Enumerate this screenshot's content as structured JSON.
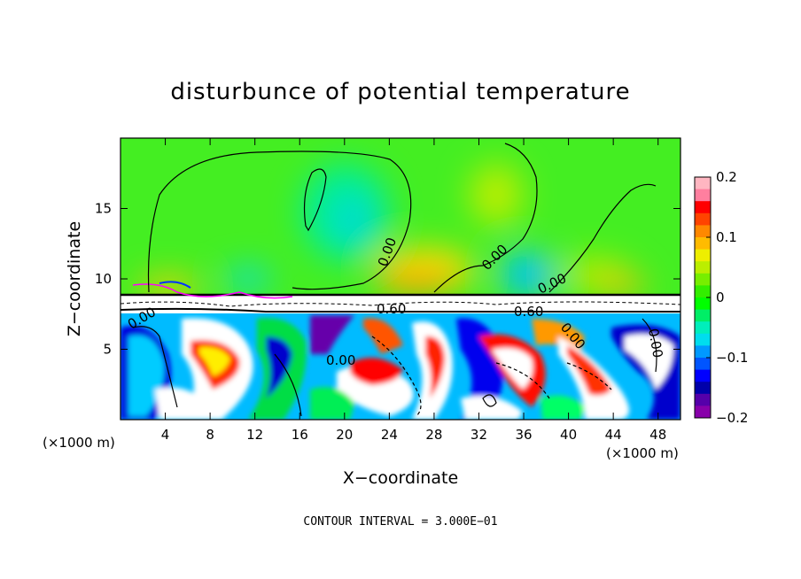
{
  "chart_data": {
    "type": "heatmap",
    "title": "disturbunce of potential temperature",
    "xlabel": "X−coordinate",
    "ylabel": "Z−coordinate",
    "x_unit_left": "(×1000 m)",
    "x_unit_right": "(×1000 m)",
    "xlim": [
      0,
      50
    ],
    "ylim": [
      0,
      20
    ],
    "xticks": [
      4,
      8,
      12,
      16,
      20,
      24,
      28,
      32,
      36,
      40,
      44,
      48
    ],
    "yticks": [
      5,
      10,
      15
    ],
    "colorbar": {
      "range": [
        -0.2,
        0.2
      ],
      "ticks": [
        "0.2",
        "0.1",
        "0",
        "−0.1",
        "−0.2"
      ],
      "colors": [
        "#ffb6c1",
        "#ff7f9f",
        "#ff0000",
        "#ff4400",
        "#ff8800",
        "#ffbb00",
        "#eeee00",
        "#bbee00",
        "#77ee00",
        "#33ee00",
        "#00ff00",
        "#00ee66",
        "#00eebb",
        "#00ddee",
        "#0099ff",
        "#0055ff",
        "#0000ff",
        "#0000aa",
        "#5500aa",
        "#8800aa"
      ]
    },
    "contour_interval": "CONTOUR INTERVAL = 3.000E−01",
    "contour_labels": [
      "0.00",
      "0.00",
      "0.00",
      "0.00",
      "0.60",
      "0.60",
      "0.00",
      "0.00",
      "0.00",
      "0.00"
    ]
  }
}
